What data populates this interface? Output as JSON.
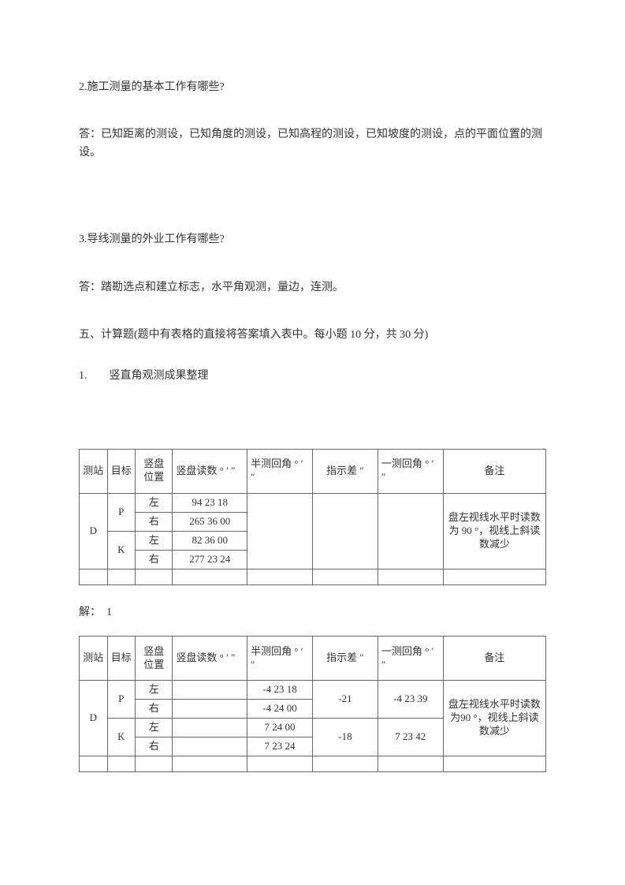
{
  "q2": {
    "title": "2.施工测量的基本工作有哪些?",
    "answer": "答：已知距离的测设，已知角度的测设，已知高程的测设，已知坡度的测设，点的平面位置的测设。"
  },
  "q3": {
    "title": "3.导线测量的外业工作有哪些?",
    "answer": "答：踏勘选点和建立标志，水平角观测，量边，连测。"
  },
  "section5": "五、计算题(题中有表格的直接将答案填入表中。每小题 10 分，共 30 分)",
  "subq1": "1.　　竖直角观测成果整理",
  "headers": {
    "station": "测站",
    "target": "目标",
    "pos": "竖盘位置",
    "reading": "竖盘读数 ° ′ ″",
    "half": "半测回角 ° ′ ″",
    "indicator": "指示差 ″",
    "round": "一测回角 ° ′ ″",
    "remark": "备注"
  },
  "table1": {
    "station": "D",
    "rows": [
      {
        "target": "P",
        "pos": "左",
        "reading": "94 23 18",
        "half": "",
        "ind": "",
        "round": ""
      },
      {
        "target": "P",
        "pos": "右",
        "reading": "265 36 00",
        "half": "",
        "ind": "",
        "round": ""
      },
      {
        "target": "K",
        "pos": "左",
        "reading": "82 36 00",
        "half": "",
        "ind": "",
        "round": ""
      },
      {
        "target": "K",
        "pos": "右",
        "reading": "277 23 24",
        "half": "",
        "ind": "",
        "round": ""
      }
    ],
    "remark": "盘左视线水平时读数为 90 °，视线上斜读数减少"
  },
  "solution_label": "解：　1",
  "table2": {
    "station": "D",
    "rows": [
      {
        "target": "P",
        "pos": "左",
        "reading": "",
        "half": "-4 23 18",
        "ind_span": "-21",
        "round_span": "-4 23 39"
      },
      {
        "target": "P",
        "pos": "右",
        "reading": "",
        "half": "-4 24 00"
      },
      {
        "target": "K",
        "pos": "左",
        "reading": "",
        "half": "7 24 00",
        "ind_span": "-18",
        "round_span": "7 23 42"
      },
      {
        "target": "K",
        "pos": "右",
        "reading": "",
        "half": "7 23 24"
      }
    ],
    "remark": "盘左视线水平时读数为90 °，视线上斜读数减少"
  }
}
